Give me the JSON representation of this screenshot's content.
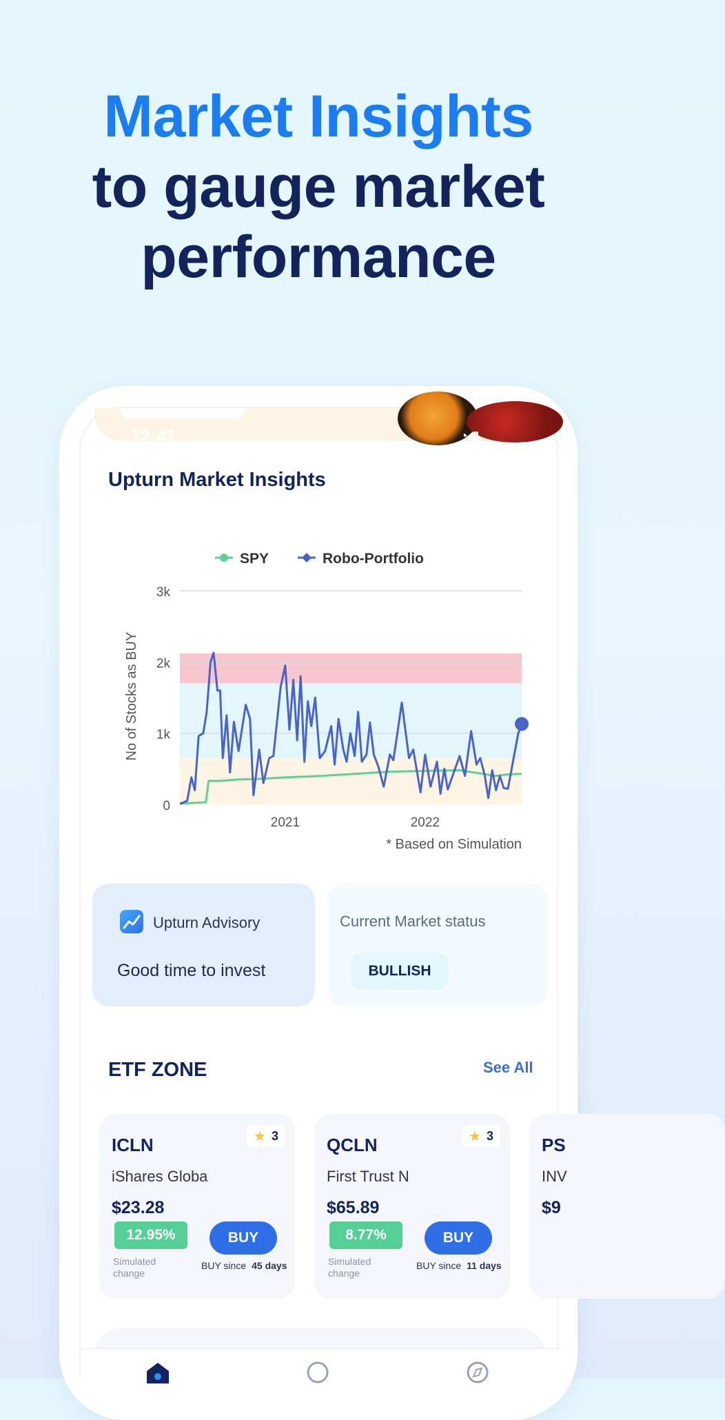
{
  "headline": {
    "line1": "Market Insights",
    "line2": "to gauge market",
    "line3": "performance"
  },
  "statusbar": {
    "time": "12:41"
  },
  "insights": {
    "title": "Upturn Market Insights"
  },
  "chart_data": {
    "type": "line",
    "legend": [
      "SPY",
      "Robo-Portfolio"
    ],
    "legend_placement": "top-center",
    "ylabel": "No of Stocks as BUY",
    "xlabel": "",
    "yticks": [
      "0",
      "1k",
      "2k",
      "3k"
    ],
    "xticks": [
      "2021",
      "2022"
    ],
    "ylim": [
      0,
      3000
    ],
    "footnote": "* Based on Simulation",
    "bands": [
      {
        "from": 0,
        "to": 650,
        "color": "#fdf5e4"
      },
      {
        "from": 650,
        "to": 1700,
        "color": "#e3f6fb"
      },
      {
        "from": 1700,
        "to": 2120,
        "color": "#f7c6ce"
      }
    ],
    "series": [
      {
        "name": "SPY",
        "color": "#5fcf9a",
        "points": [
          [
            "2020-04-01",
            10
          ],
          [
            "2020-05-01",
            20
          ],
          [
            "2020-06-08",
            30
          ],
          [
            "2020-06-15",
            330
          ],
          [
            "2020-07-15",
            330
          ],
          [
            "2020-09-01",
            350
          ],
          [
            "2020-11-01",
            360
          ],
          [
            "2021-01-01",
            380
          ],
          [
            "2021-04-01",
            400
          ],
          [
            "2021-07-01",
            430
          ],
          [
            "2021-10-01",
            460
          ],
          [
            "2022-01-01",
            470
          ],
          [
            "2022-04-01",
            480
          ],
          [
            "2022-06-01",
            430
          ],
          [
            "2022-07-01",
            400
          ],
          [
            "2022-08-01",
            420
          ],
          [
            "2022-09-10",
            430
          ]
        ]
      },
      {
        "name": "Robo-Portfolio",
        "color": "#4a63c8",
        "points": [
          [
            "2020-04-01",
            10
          ],
          [
            "2020-04-20",
            50
          ],
          [
            "2020-05-01",
            380
          ],
          [
            "2020-05-10",
            200
          ],
          [
            "2020-05-20",
            960
          ],
          [
            "2020-06-01",
            1000
          ],
          [
            "2020-06-10",
            1300
          ],
          [
            "2020-06-20",
            2000
          ],
          [
            "2020-06-28",
            2130
          ],
          [
            "2020-07-08",
            1600
          ],
          [
            "2020-07-15",
            1600
          ],
          [
            "2020-07-22",
            650
          ],
          [
            "2020-08-01",
            1250
          ],
          [
            "2020-08-10",
            450
          ],
          [
            "2020-08-20",
            1160
          ],
          [
            "2020-09-01",
            750
          ],
          [
            "2020-09-20",
            1400
          ],
          [
            "2020-10-01",
            1200
          ],
          [
            "2020-10-10",
            130
          ],
          [
            "2020-10-25",
            770
          ],
          [
            "2020-11-05",
            300
          ],
          [
            "2020-11-20",
            650
          ],
          [
            "2020-12-01",
            680
          ],
          [
            "2020-12-20",
            1650
          ],
          [
            "2021-01-01",
            1950
          ],
          [
            "2021-01-12",
            1050
          ],
          [
            "2021-01-22",
            1750
          ],
          [
            "2021-02-01",
            900
          ],
          [
            "2021-02-10",
            1800
          ],
          [
            "2021-02-20",
            600
          ],
          [
            "2021-03-01",
            1450
          ],
          [
            "2021-03-10",
            1100
          ],
          [
            "2021-03-20",
            1500
          ],
          [
            "2021-04-01",
            650
          ],
          [
            "2021-04-15",
            750
          ],
          [
            "2021-05-01",
            1100
          ],
          [
            "2021-05-10",
            560
          ],
          [
            "2021-05-20",
            1200
          ],
          [
            "2021-06-01",
            780
          ],
          [
            "2021-06-10",
            600
          ],
          [
            "2021-06-20",
            1000
          ],
          [
            "2021-07-01",
            680
          ],
          [
            "2021-07-10",
            1300
          ],
          [
            "2021-07-20",
            600
          ],
          [
            "2021-08-01",
            700
          ],
          [
            "2021-08-10",
            1150
          ],
          [
            "2021-08-20",
            700
          ],
          [
            "2021-09-01",
            530
          ],
          [
            "2021-09-15",
            250
          ],
          [
            "2021-10-01",
            700
          ],
          [
            "2021-10-10",
            620
          ],
          [
            "2021-10-20",
            980
          ],
          [
            "2021-11-01",
            1430
          ],
          [
            "2021-11-20",
            650
          ],
          [
            "2021-12-01",
            770
          ],
          [
            "2021-12-20",
            170
          ],
          [
            "2022-01-01",
            700
          ],
          [
            "2022-01-15",
            250
          ],
          [
            "2022-02-01",
            600
          ],
          [
            "2022-02-10",
            150
          ],
          [
            "2022-02-20",
            500
          ],
          [
            "2022-03-01",
            210
          ],
          [
            "2022-04-01",
            680
          ],
          [
            "2022-04-15",
            400
          ],
          [
            "2022-05-01",
            1030
          ],
          [
            "2022-05-15",
            560
          ],
          [
            "2022-05-25",
            650
          ],
          [
            "2022-06-05",
            420
          ],
          [
            "2022-06-15",
            90
          ],
          [
            "2022-06-25",
            480
          ],
          [
            "2022-07-05",
            200
          ],
          [
            "2022-07-15",
            400
          ],
          [
            "2022-07-25",
            230
          ],
          [
            "2022-08-05",
            220
          ],
          [
            "2022-08-20",
            650
          ],
          [
            "2022-09-01",
            1000
          ],
          [
            "2022-09-10",
            1130
          ]
        ]
      }
    ]
  },
  "advisory": {
    "label": "Upturn Advisory",
    "text": "Good time to invest",
    "icon": "trend-chart-icon"
  },
  "market_status": {
    "label": "Current Market status",
    "value": "BULLISH"
  },
  "etf_zone": {
    "title": "ETF ZONE",
    "see_all": "See All",
    "cards": [
      {
        "ticker": "ICLN",
        "rating": "3",
        "name": "iShares Globa",
        "price": "$23.28",
        "change": "12.95%",
        "change_label": "Simulated change",
        "buy": "BUY",
        "since_label": "BUY since",
        "since_value": "45 days"
      },
      {
        "ticker": "QCLN",
        "rating": "3",
        "name": "First Trust N",
        "price": "$65.89",
        "change": "8.77%",
        "change_label": "Simulated change",
        "buy": "BUY",
        "since_label": "BUY since",
        "since_value": "11 days"
      },
      {
        "ticker": "PS",
        "name": "INV",
        "price": "$9"
      }
    ]
  },
  "tabbar": {
    "icons": [
      "home-icon",
      "search-icon",
      "compass-icon"
    ]
  }
}
